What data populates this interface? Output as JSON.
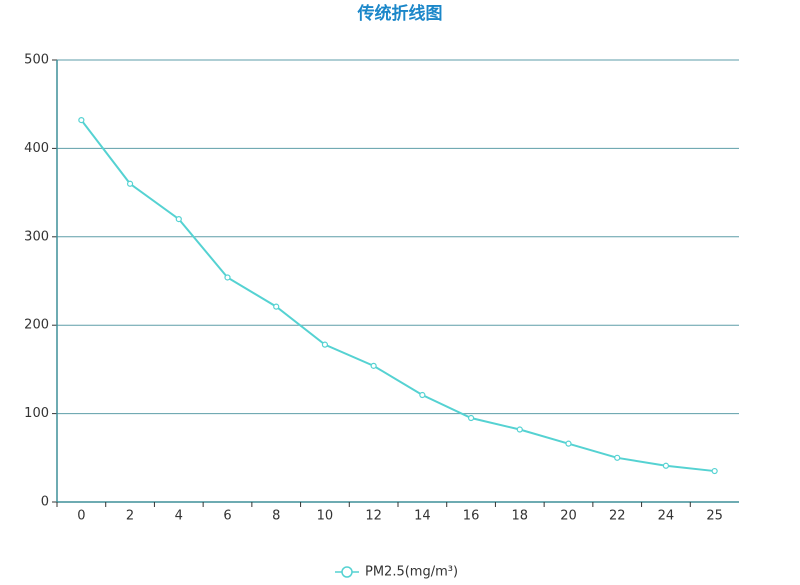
{
  "chart_data": {
    "type": "line",
    "title": "传统折线图",
    "categories": [
      "0",
      "2",
      "4",
      "6",
      "8",
      "10",
      "12",
      "14",
      "16",
      "18",
      "20",
      "22",
      "24",
      "25"
    ],
    "series": [
      {
        "name": "PM2.5(mg/m³)",
        "color": "#55d2d2",
        "values": [
          432,
          360,
          320,
          254,
          221,
          178,
          154,
          121,
          95,
          82,
          66,
          50,
          41,
          35
        ]
      }
    ],
    "ylim": [
      0,
      500
    ],
    "yticks": [
      0,
      100,
      200,
      300,
      400,
      500
    ],
    "grid": true,
    "legend": "bottom"
  }
}
